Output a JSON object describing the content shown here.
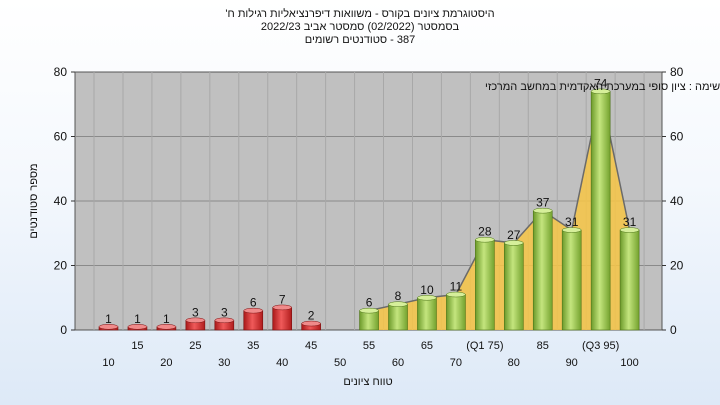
{
  "header": {
    "line1": "היסטוגרמת ציונים בקורס - משוואות דיפרנציאליות רגילות ח'",
    "line2": "בסמסטר (02/2022) סמסטר אביב 2022/23",
    "line3": "387 - סטודנטים רשומים"
  },
  "chart_data": {
    "type": "bar",
    "title": "היסטוגרמת ציונים בקורס - משוואות דיפרנציאליות רגילות ח'",
    "annotation": "במשימה : ציון סופי במערכת האקדמית במחשב המרכזי",
    "xlabel": "טווח ציונים",
    "ylabel": "מספר סטודנטים",
    "ylim": [
      0,
      80
    ],
    "yticks": [
      0,
      20,
      40,
      60,
      80
    ],
    "grid": true,
    "categories": [
      {
        "label": "10",
        "value": 1,
        "color": "red"
      },
      {
        "label": "15",
        "value": 1,
        "color": "red"
      },
      {
        "label": "20",
        "value": 1,
        "color": "red"
      },
      {
        "label": "25",
        "value": 3,
        "color": "red"
      },
      {
        "label": "30",
        "value": 3,
        "color": "red"
      },
      {
        "label": "35",
        "value": 6,
        "color": "red"
      },
      {
        "label": "40",
        "value": 7,
        "color": "red"
      },
      {
        "label": "45",
        "value": 2,
        "color": "red"
      },
      {
        "label": "50",
        "value": null,
        "color": "none"
      },
      {
        "label": "55",
        "value": 6,
        "color": "green"
      },
      {
        "label": "60",
        "value": 8,
        "color": "green"
      },
      {
        "label": "65",
        "value": 10,
        "color": "green"
      },
      {
        "label": "70",
        "value": 11,
        "color": "green"
      },
      {
        "label": "(Q1 75)",
        "value": 28,
        "color": "green"
      },
      {
        "label": "80",
        "value": 27,
        "color": "green"
      },
      {
        "label": "85",
        "value": 37,
        "color": "green"
      },
      {
        "label": "90",
        "value": 31,
        "color": "green"
      },
      {
        "label": "(Q3 95)",
        "value": 74,
        "color": "green"
      },
      {
        "label": "100",
        "value": 31,
        "color": "green"
      }
    ],
    "colors": {
      "fail_bar": "#e23a3a",
      "pass_bar": "#9acd4a",
      "area_fill": "#f7c545",
      "plot_bg": "#c0c0c0"
    }
  }
}
